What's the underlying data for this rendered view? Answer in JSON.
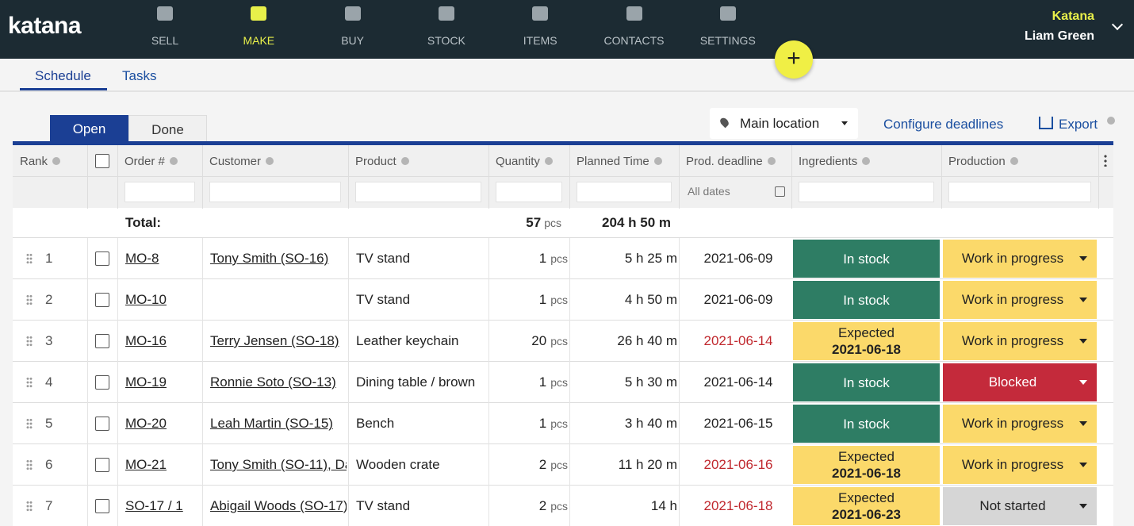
{
  "nav": {
    "logo": "katana",
    "items": [
      "SELL",
      "MAKE",
      "BUY",
      "STOCK",
      "ITEMS",
      "CONTACTS",
      "SETTINGS"
    ],
    "company": "Katana",
    "user": "Liam Green"
  },
  "tabs": [
    "Schedule",
    "Tasks"
  ],
  "toggle": [
    "Open",
    "Done"
  ],
  "toolbar": {
    "location": "Main location",
    "configure": "Configure deadlines",
    "export": "Export"
  },
  "table": {
    "columns": [
      "Rank",
      "Order #",
      "Customer",
      "Product",
      "Quantity",
      "Planned Time",
      "Prod. deadline",
      "Ingredients",
      "Production"
    ],
    "date_filter": "All dates",
    "total": {
      "label": "Total:",
      "quantity": 57,
      "unit": "pcs",
      "time": "204 h 50 m"
    },
    "rows": [
      {
        "rank": 1,
        "order": "MO-8",
        "customer": "Tony Smith (SO-16)",
        "product": "TV stand",
        "quantity": 1,
        "unit": "pcs",
        "time": "5 h 25 m",
        "deadline": "2021-06-09",
        "deadline_color": "#222222",
        "ingredients": "In stock",
        "ingredients_date": null,
        "ingredients_color": "#2e7d64",
        "production": "Work in progress",
        "production_color": "#fbd96a"
      },
      {
        "rank": 2,
        "order": "MO-10",
        "customer": null,
        "product": "TV stand",
        "quantity": 1,
        "unit": "pcs",
        "time": "4 h 50 m",
        "deadline": "2021-06-09",
        "deadline_color": "#222222",
        "ingredients": "In stock",
        "ingredients_date": null,
        "ingredients_color": "#2e7d64",
        "production": "Work in progress",
        "production_color": "#fbd96a"
      },
      {
        "rank": 3,
        "order": "MO-16",
        "customer": "Terry Jensen (SO-18)",
        "product": "Leather keychain",
        "quantity": 20,
        "unit": "pcs",
        "time": "26 h 40 m",
        "deadline": "2021-06-14",
        "deadline_color": "#c0272d",
        "ingredients": "Expected",
        "ingredients_date": "2021-06-18",
        "ingredients_color": "#fbd96a",
        "production": "Work in progress",
        "production_color": "#fbd96a"
      },
      {
        "rank": 4,
        "order": "MO-19",
        "customer": "Ronnie Soto (SO-13)",
        "product": "Dining table / brown",
        "quantity": 1,
        "unit": "pcs",
        "time": "5 h 30 m",
        "deadline": "2021-06-14",
        "deadline_color": "#222222",
        "ingredients": "In stock",
        "ingredients_date": null,
        "ingredients_color": "#2e7d64",
        "production": "Blocked",
        "production_color": "#c42a3b"
      },
      {
        "rank": 5,
        "order": "MO-20",
        "customer": "Leah Martin (SO-15)",
        "product": "Bench",
        "quantity": 1,
        "unit": "pcs",
        "time": "3 h 40 m",
        "deadline": "2021-06-15",
        "deadline_color": "#222222",
        "ingredients": "In stock",
        "ingredients_date": null,
        "ingredients_color": "#2e7d64",
        "production": "Work in progress",
        "production_color": "#fbd96a"
      },
      {
        "rank": 6,
        "order": "MO-21",
        "customer": "Tony Smith (SO-11), Da",
        "product": "Wooden crate",
        "quantity": 2,
        "unit": "pcs",
        "time": "11 h 20 m",
        "deadline": "2021-06-16",
        "deadline_color": "#c0272d",
        "ingredients": "Expected",
        "ingredients_date": "2021-06-18",
        "ingredients_color": "#fbd96a",
        "production": "Work in progress",
        "production_color": "#fbd96a"
      },
      {
        "rank": 7,
        "order": "SO-17 / 1",
        "customer": "Abigail Woods (SO-17)",
        "product": "TV stand",
        "quantity": 2,
        "unit": "pcs",
        "time": "14 h",
        "deadline": "2021-06-18",
        "deadline_color": "#c0272d",
        "ingredients": "Expected",
        "ingredients_date": "2021-06-23",
        "ingredients_color": "#fbd96a",
        "production": "Not started",
        "production_color": "#d6d6d6"
      }
    ]
  }
}
